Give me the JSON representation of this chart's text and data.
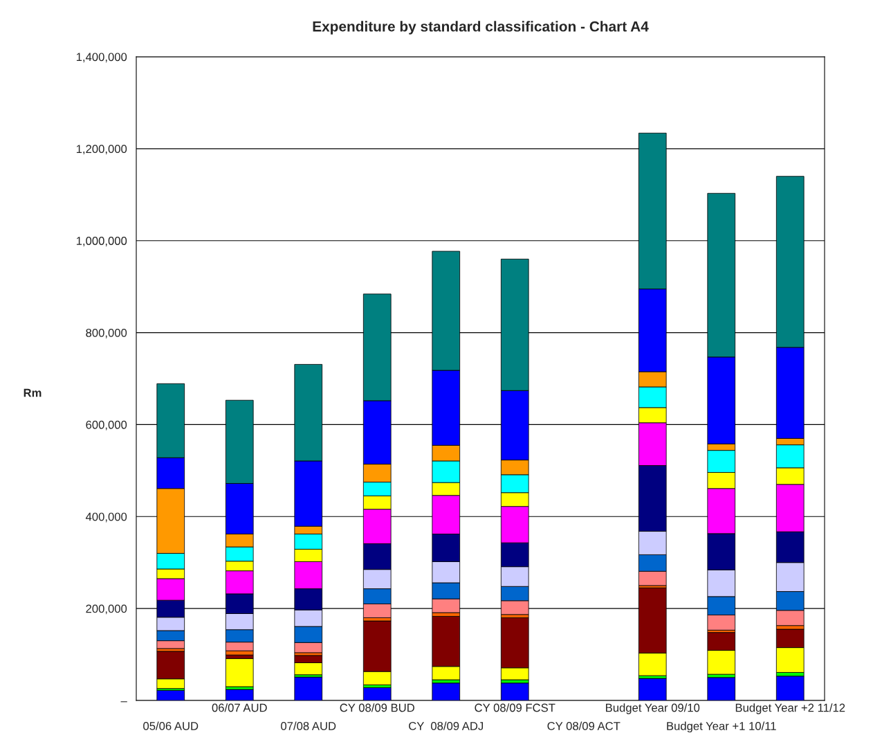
{
  "chart_data": {
    "type": "bar",
    "stacked": true,
    "title": "Expenditure by standard classification - Chart A4",
    "ylabel": "Rm",
    "categories": [
      "05/06 AUD",
      "06/07 AUD",
      "07/08 AUD",
      "CY 08/09 BUD",
      "CY  08/09 ADJ",
      "CY 08/09 FCST",
      "CY 08/09 ACT",
      "Budget Year 09/10",
      "Budget Year +1 10/11",
      "Budget Year +2 11/12"
    ],
    "series": [
      {
        "color": "#0000ff",
        "values": [
          22000,
          24000,
          51000,
          28000,
          38000,
          38000,
          null,
          48000,
          50000,
          53000
        ]
      },
      {
        "color": "#00ff00",
        "values": [
          4000,
          6000,
          5000,
          6000,
          7000,
          7000,
          null,
          6000,
          7000,
          8000
        ]
      },
      {
        "color": "#ffff00",
        "values": [
          21000,
          61000,
          26000,
          29000,
          29000,
          26000,
          null,
          49000,
          52000,
          54000
        ]
      },
      {
        "color": "#800000",
        "values": [
          60000,
          8000,
          16000,
          110000,
          109000,
          109000,
          null,
          142000,
          39000,
          40000
        ]
      },
      {
        "color": "#ff6600",
        "values": [
          6000,
          9000,
          6000,
          7000,
          8000,
          7000,
          null,
          5000,
          5000,
          8000
        ]
      },
      {
        "color": "#ff8080",
        "values": [
          17000,
          19000,
          22000,
          30000,
          30000,
          30000,
          null,
          31000,
          33000,
          33000
        ]
      },
      {
        "color": "#0066cc",
        "values": [
          22000,
          27000,
          35000,
          33000,
          35000,
          31000,
          null,
          36000,
          40000,
          41000
        ]
      },
      {
        "color": "#ccccff",
        "values": [
          29000,
          35000,
          36000,
          42000,
          46000,
          43000,
          null,
          51000,
          58000,
          63000
        ]
      },
      {
        "color": "#000080",
        "values": [
          37000,
          43000,
          46000,
          56000,
          60000,
          52000,
          null,
          143000,
          79000,
          67000
        ]
      },
      {
        "color": "#ff00ff",
        "values": [
          47000,
          50000,
          59000,
          75000,
          84000,
          79000,
          null,
          93000,
          98000,
          103000
        ]
      },
      {
        "color": "#ffff00",
        "values": [
          21000,
          21000,
          27000,
          29000,
          28000,
          30000,
          null,
          33000,
          35000,
          36000
        ]
      },
      {
        "color": "#00ffff",
        "values": [
          34000,
          31000,
          33000,
          30000,
          47000,
          39000,
          null,
          45000,
          48000,
          50000
        ]
      },
      {
        "color": "#ff9900",
        "values": [
          141000,
          28000,
          17000,
          39000,
          34000,
          32000,
          null,
          33000,
          14000,
          14000
        ]
      },
      {
        "color": "#0000ff",
        "values": [
          67000,
          110000,
          142000,
          138000,
          163000,
          151000,
          null,
          180000,
          189000,
          198000
        ]
      },
      {
        "color": "#008080",
        "values": [
          161000,
          181000,
          210000,
          232000,
          259000,
          286000,
          null,
          339000,
          356000,
          372000
        ]
      }
    ],
    "ylim": [
      0,
      1400000
    ],
    "yticks": [
      {
        "value": 0,
        "label": "–"
      },
      {
        "value": 200000,
        "label": "200,000"
      },
      {
        "value": 400000,
        "label": "400,000"
      },
      {
        "value": 600000,
        "label": "600,000"
      },
      {
        "value": 800000,
        "label": "800,000"
      },
      {
        "value": 1000000,
        "label": "1,000,000"
      },
      {
        "value": 1200000,
        "label": "1,200,000"
      },
      {
        "value": 1400000,
        "label": "1,400,000"
      }
    ],
    "grid": "y"
  }
}
